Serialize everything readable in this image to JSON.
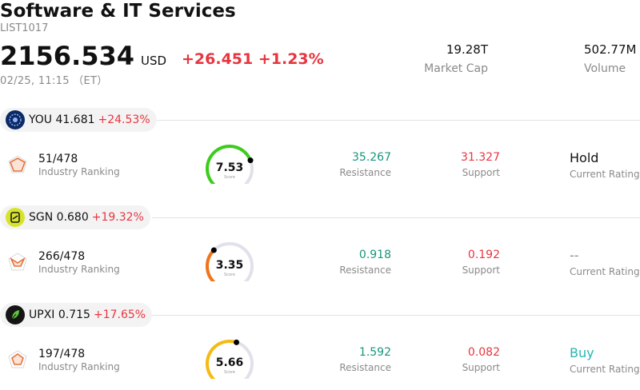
{
  "header": {
    "title": "Software & IT Services",
    "code": "LIST1017",
    "price": "2156.534",
    "currency": "USD",
    "change": "+26.451 +1.23%",
    "timestamp": "02/25, 11:15 （ET）",
    "market_cap_value": "19.28T",
    "market_cap_label": "Market Cap",
    "volume_value": "502.77M",
    "volume_label": "Volume"
  },
  "colors": {
    "up_red": "#e8353f",
    "resistance_green": "#17957d",
    "buy_teal": "#26b6b0"
  },
  "stocks": [
    {
      "ticker": "YOU",
      "price": "41.681",
      "change": "+24.53%",
      "logo_icon": "you-logo-icon",
      "ranking": "51/478",
      "ranking_label": "Industry Ranking",
      "score": "7.53",
      "score_value": 7.53,
      "score_label": "Score",
      "gauge_color": "#3ccd1a",
      "resistance": "35.267",
      "resistance_label": "Resistance",
      "support": "31.327",
      "support_label": "Support",
      "rating": "Hold",
      "rating_label": "Current Rating",
      "rating_color": "#111111"
    },
    {
      "ticker": "SGN",
      "price": "0.680",
      "change": "+19.32%",
      "logo_icon": "sgn-logo-icon",
      "ranking": "266/478",
      "ranking_label": "Industry Ranking",
      "score": "3.35",
      "score_value": 3.35,
      "score_label": "Score",
      "gauge_color": "#f0741a",
      "resistance": "0.918",
      "resistance_label": "Resistance",
      "support": "0.192",
      "support_label": "Support",
      "rating": "--",
      "rating_label": "Current Rating",
      "rating_color": "#8a8a8a"
    },
    {
      "ticker": "UPXI",
      "price": "0.715",
      "change": "+17.65%",
      "logo_icon": "upxi-logo-icon",
      "ranking": "197/478",
      "ranking_label": "Industry Ranking",
      "score": "5.66",
      "score_value": 5.66,
      "score_label": "Score",
      "gauge_color": "#f5bb12",
      "resistance": "1.592",
      "resistance_label": "Resistance",
      "support": "0.082",
      "support_label": "Support",
      "rating": "Buy",
      "rating_label": "Current Rating",
      "rating_color": "#26b6b0"
    }
  ]
}
